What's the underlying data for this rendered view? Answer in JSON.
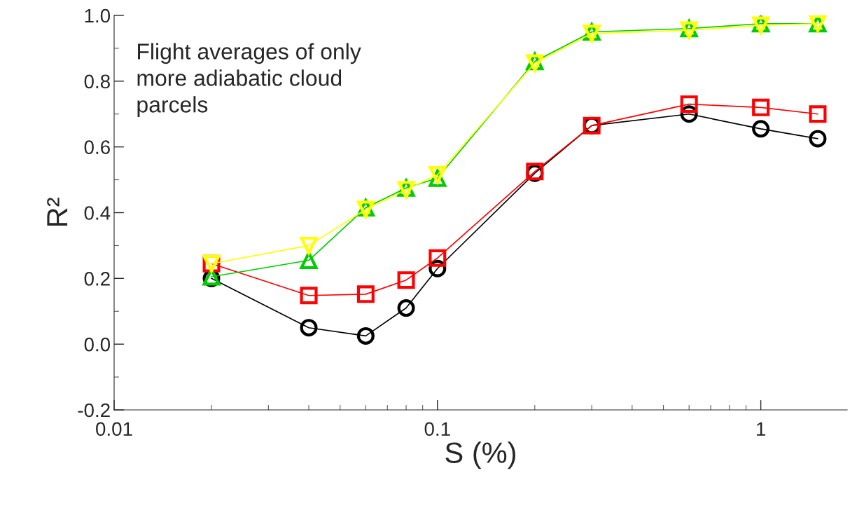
{
  "chart_data": {
    "type": "line",
    "xlabel": "S (%)",
    "ylabel": "R²",
    "log": "x",
    "x": [
      0.02,
      0.04,
      0.06,
      0.08,
      0.1,
      0.2,
      0.3,
      0.6,
      1.0,
      1.5
    ],
    "series": [
      {
        "color": "#000000",
        "marker": "circle",
        "values": [
          0.2,
          0.05,
          0.025,
          0.11,
          0.23,
          0.52,
          0.665,
          0.7,
          0.655,
          0.625
        ]
      },
      {
        "color": "#ff0000",
        "marker": "square",
        "values": [
          0.245,
          0.148,
          0.152,
          0.195,
          0.262,
          0.525,
          0.665,
          0.73,
          0.72,
          0.7
        ]
      },
      {
        "color": "#00cc00",
        "marker": "triangle",
        "values": [
          0.205,
          0.255,
          0.415,
          0.475,
          0.505,
          0.86,
          0.95,
          0.96,
          0.975,
          0.975
        ]
      },
      {
        "color": "#ffff00",
        "marker": "triangle_down",
        "values": [
          0.245,
          0.3,
          0.41,
          0.47,
          0.515,
          0.855,
          0.945,
          0.955,
          0.97,
          0.975
        ]
      }
    ],
    "xlim": [
      0.01,
      1.85
    ],
    "xticks": [
      0.01,
      0.1,
      1
    ],
    "ylim": [
      -0.2,
      1.0
    ],
    "yticks": [
      -0.2,
      {
        "value": 0.0,
        "label": "0.0"
      },
      0.2,
      0.4,
      0.6,
      0.8,
      {
        "value": 1.0,
        "label": "1.0"
      }
    ],
    "grid": false,
    "legend": false,
    "annotations": [
      "Flight averages of only\nmore adiabatic cloud\nparcels"
    ]
  }
}
